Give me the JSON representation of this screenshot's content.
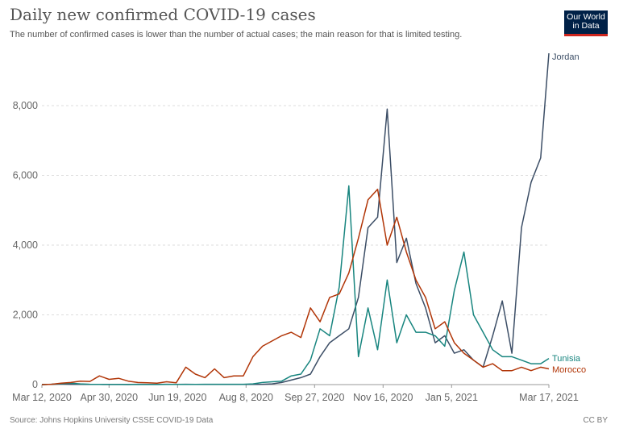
{
  "header": {
    "title": "Daily new confirmed COVID-19 cases",
    "subtitle": "The number of confirmed cases is lower than the number of actual cases; the main reason for that is limited testing.",
    "logo_text": "Our World in Data"
  },
  "footer": {
    "source": "Source: Johns Hopkins University CSSE COVID-19 Data",
    "license": "CC BY"
  },
  "chart_data": {
    "type": "line",
    "title": "Daily new confirmed COVID-19 cases",
    "xlabel": "",
    "ylabel": "",
    "ylim": [
      0,
      9600
    ],
    "xlim": [
      "2020-03-12",
      "2021-03-17"
    ],
    "grid": "horizontal dashed",
    "legend": "right (labels at line ends)",
    "y_ticks": [
      "0",
      "2,000",
      "4,000",
      "6,000",
      "8,000"
    ],
    "y_tick_values": [
      0,
      2000,
      4000,
      6000,
      8000
    ],
    "x_ticks": [
      "Mar 12, 2020",
      "Apr 30, 2020",
      "Jun 19, 2020",
      "Aug 8, 2020",
      "Sep 27, 2020",
      "Nov 16, 2020",
      "Jan 5, 2021",
      "Mar 17, 2021"
    ],
    "x_tick_dates": [
      "2020-03-12",
      "2020-04-30",
      "2020-06-19",
      "2020-08-08",
      "2020-09-27",
      "2020-11-16",
      "2021-01-05",
      "2021-03-17"
    ],
    "x": [
      "2020-03-12",
      "2020-03-19",
      "2020-03-26",
      "2020-04-02",
      "2020-04-09",
      "2020-04-16",
      "2020-04-23",
      "2020-04-30",
      "2020-05-07",
      "2020-05-14",
      "2020-05-21",
      "2020-05-28",
      "2020-06-04",
      "2020-06-11",
      "2020-06-18",
      "2020-06-25",
      "2020-07-02",
      "2020-07-09",
      "2020-07-16",
      "2020-07-23",
      "2020-07-30",
      "2020-08-06",
      "2020-08-13",
      "2020-08-20",
      "2020-08-27",
      "2020-09-03",
      "2020-09-10",
      "2020-09-17",
      "2020-09-24",
      "2020-10-01",
      "2020-10-08",
      "2020-10-15",
      "2020-10-22",
      "2020-10-29",
      "2020-11-05",
      "2020-11-12",
      "2020-11-19",
      "2020-11-26",
      "2020-12-03",
      "2020-12-10",
      "2020-12-17",
      "2020-12-24",
      "2020-12-31",
      "2021-01-07",
      "2021-01-14",
      "2021-01-21",
      "2021-01-28",
      "2021-02-04",
      "2021-02-11",
      "2021-02-18",
      "2021-02-25",
      "2021-03-04",
      "2021-03-11",
      "2021-03-17"
    ],
    "series": [
      {
        "name": "Jordan",
        "color": "#3c4e66",
        "values": [
          0,
          10,
          20,
          10,
          10,
          5,
          5,
          2,
          5,
          3,
          10,
          5,
          5,
          10,
          5,
          10,
          5,
          5,
          5,
          5,
          5,
          5,
          5,
          10,
          20,
          60,
          130,
          200,
          300,
          800,
          1200,
          1400,
          1600,
          2500,
          4500,
          4800,
          7900,
          3500,
          4200,
          2900,
          2200,
          1200,
          1400,
          900,
          1000,
          700,
          500,
          1400,
          2400,
          900,
          4500,
          5800,
          6500,
          9500
        ]
      },
      {
        "name": "Tunisia",
        "color": "#18857f",
        "values": [
          0,
          10,
          30,
          40,
          20,
          10,
          5,
          5,
          2,
          2,
          2,
          2,
          2,
          5,
          5,
          5,
          5,
          10,
          10,
          10,
          10,
          10,
          20,
          60,
          80,
          100,
          250,
          300,
          700,
          1600,
          1400,
          2800,
          5700,
          800,
          2200,
          1000,
          3000,
          1200,
          2000,
          1500,
          1500,
          1400,
          1100,
          2700,
          3800,
          2000,
          1500,
          1000,
          800,
          800,
          700,
          600,
          600,
          750
        ]
      },
      {
        "name": "Morocco",
        "color": "#b13507",
        "values": [
          0,
          10,
          40,
          60,
          100,
          90,
          250,
          150,
          180,
          100,
          60,
          50,
          40,
          80,
          50,
          500,
          300,
          200,
          450,
          200,
          250,
          250,
          800,
          1100,
          1250,
          1400,
          1500,
          1350,
          2200,
          1800,
          2500,
          2600,
          3200,
          4200,
          5300,
          5600,
          4000,
          4800,
          3800,
          3000,
          2500,
          1600,
          1800,
          1200,
          900,
          700,
          500,
          600,
          400,
          400,
          500,
          400,
          500,
          450
        ]
      }
    ]
  }
}
